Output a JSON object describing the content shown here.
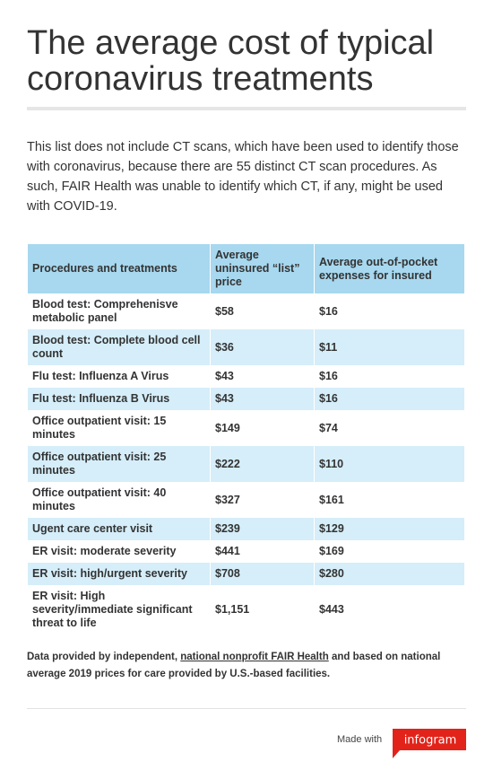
{
  "header": {
    "title": "The average cost of typical coronavirus treatments"
  },
  "description": "This list does not include CT scans, which have been used to identify those with coronavirus, because there are 55 distinct CT scan procedures. As such, FAIR Health was unable to identify which CT, if any, might be used with COVID-19.",
  "table": {
    "columns": [
      "Procedures and treatments",
      "Average uninsured “list” price",
      "Average out-of-pocket expenses for insured"
    ],
    "rows": [
      [
        "Blood test: Comprehenisve metabolic panel",
        "$58",
        "$16"
      ],
      [
        "Blood test: Complete blood cell count",
        "$36",
        "$11"
      ],
      [
        "Flu test: Influenza A Virus",
        "$43",
        "$16"
      ],
      [
        "Flu test: Influenza B Virus",
        "$43",
        "$16"
      ],
      [
        "Office outpatient visit: 15 minutes",
        "$149",
        "$74"
      ],
      [
        "Office outpatient visit: 25 minutes",
        "$222",
        "$110"
      ],
      [
        "Office outpatient visit: 40 minutes",
        "$327",
        "$161"
      ],
      [
        "Ugent care center visit",
        "$239",
        "$129"
      ],
      [
        "ER visit: moderate severity",
        "$441",
        "$169"
      ],
      [
        "ER visit: high/urgent severity",
        "$708",
        "$280"
      ],
      [
        "ER visit: High severity/immediate significant threat to life",
        "$1,151",
        "$443"
      ]
    ]
  },
  "footer": {
    "before": "Data provided by independent,",
    "link": "national nonprofit FAIR Health",
    "after": "and based on national average 2019 prices for care provided by U.S.-based facilities."
  },
  "branding": {
    "made_with": "Made with",
    "logo": "infogram"
  }
}
